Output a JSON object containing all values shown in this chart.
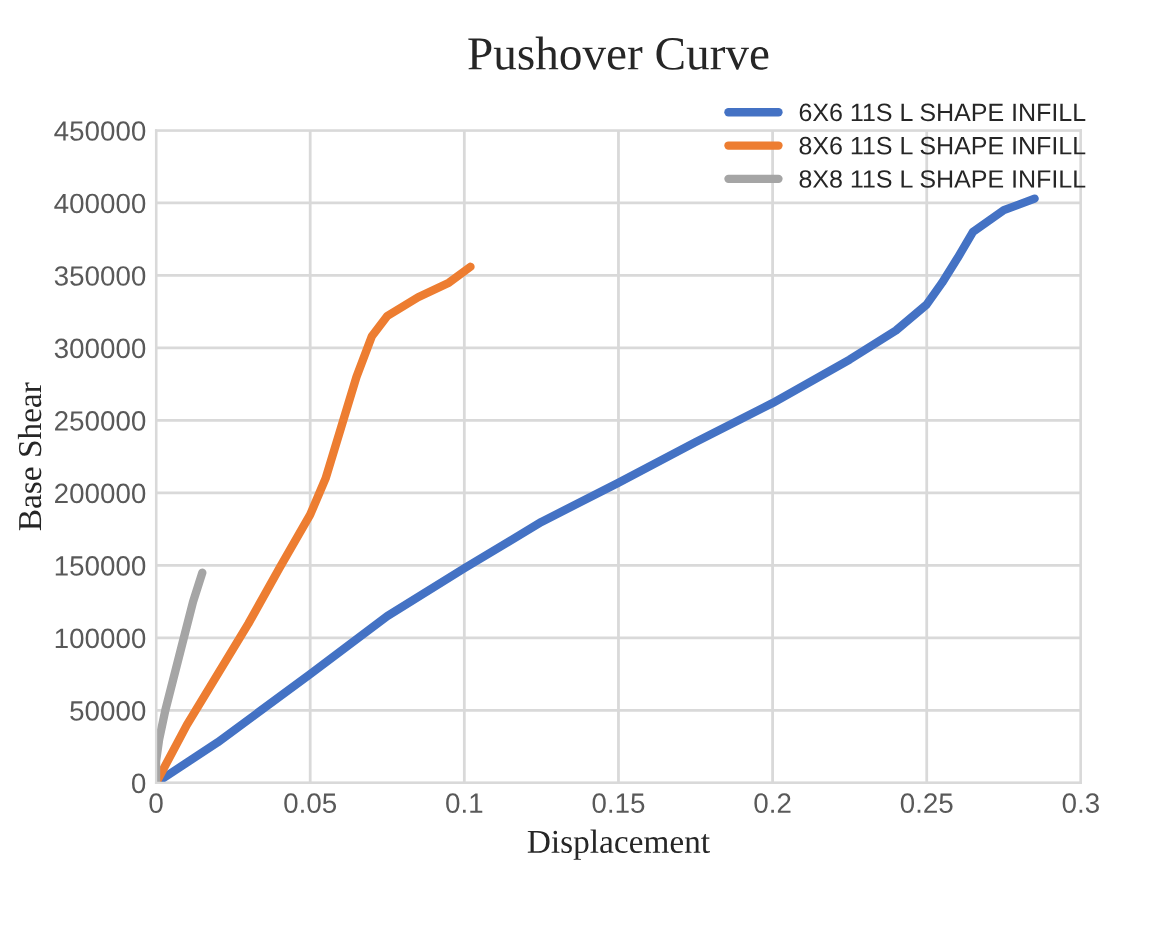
{
  "chart_data": {
    "type": "line",
    "title": "Pushover Curve",
    "xlabel": "Displacement",
    "ylabel": "Base Shear",
    "xlim": [
      0,
      0.3
    ],
    "xticks": [
      0,
      0.05,
      0.1,
      0.15,
      0.2,
      0.25,
      0.3
    ],
    "ylim": [
      0,
      450000
    ],
    "yticks": [
      0,
      50000,
      100000,
      150000,
      200000,
      250000,
      300000,
      350000,
      400000,
      450000
    ],
    "grid": true,
    "legend": "top right",
    "marker": "none",
    "line_style": "solid",
    "series": [
      {
        "name": "6X6 11S L SHAPE INFILL",
        "color": "#4472c4",
        "x": [
          0,
          0.02,
          0.05,
          0.075,
          0.1,
          0.125,
          0.15,
          0.175,
          0.2,
          0.225,
          0.24,
          0.25,
          0.255,
          0.26,
          0.265,
          0.275,
          0.285
        ],
        "values": [
          0,
          28000,
          75000,
          115000,
          148000,
          180000,
          207000,
          235000,
          262000,
          292000,
          312000,
          330000,
          345000,
          362000,
          380000,
          395000,
          403000
        ]
      },
      {
        "name": "8X6 11S L SHAPE INFILL",
        "color": "#ed7d31",
        "x": [
          0,
          0.01,
          0.02,
          0.03,
          0.04,
          0.05,
          0.055,
          0.06,
          0.065,
          0.07,
          0.075,
          0.085,
          0.095,
          0.102
        ],
        "values": [
          0,
          40000,
          75000,
          110000,
          148000,
          185000,
          210000,
          245000,
          280000,
          308000,
          322000,
          335000,
          345000,
          356000
        ]
      },
      {
        "name": "8X8 11S L SHAPE INFILL",
        "color": "#a5a5a5",
        "x": [
          0,
          0,
          0.001,
          0.003,
          0.006,
          0.009,
          0.012,
          0.015
        ],
        "values": [
          0,
          15000,
          30000,
          50000,
          75000,
          100000,
          125000,
          145000
        ]
      }
    ]
  }
}
